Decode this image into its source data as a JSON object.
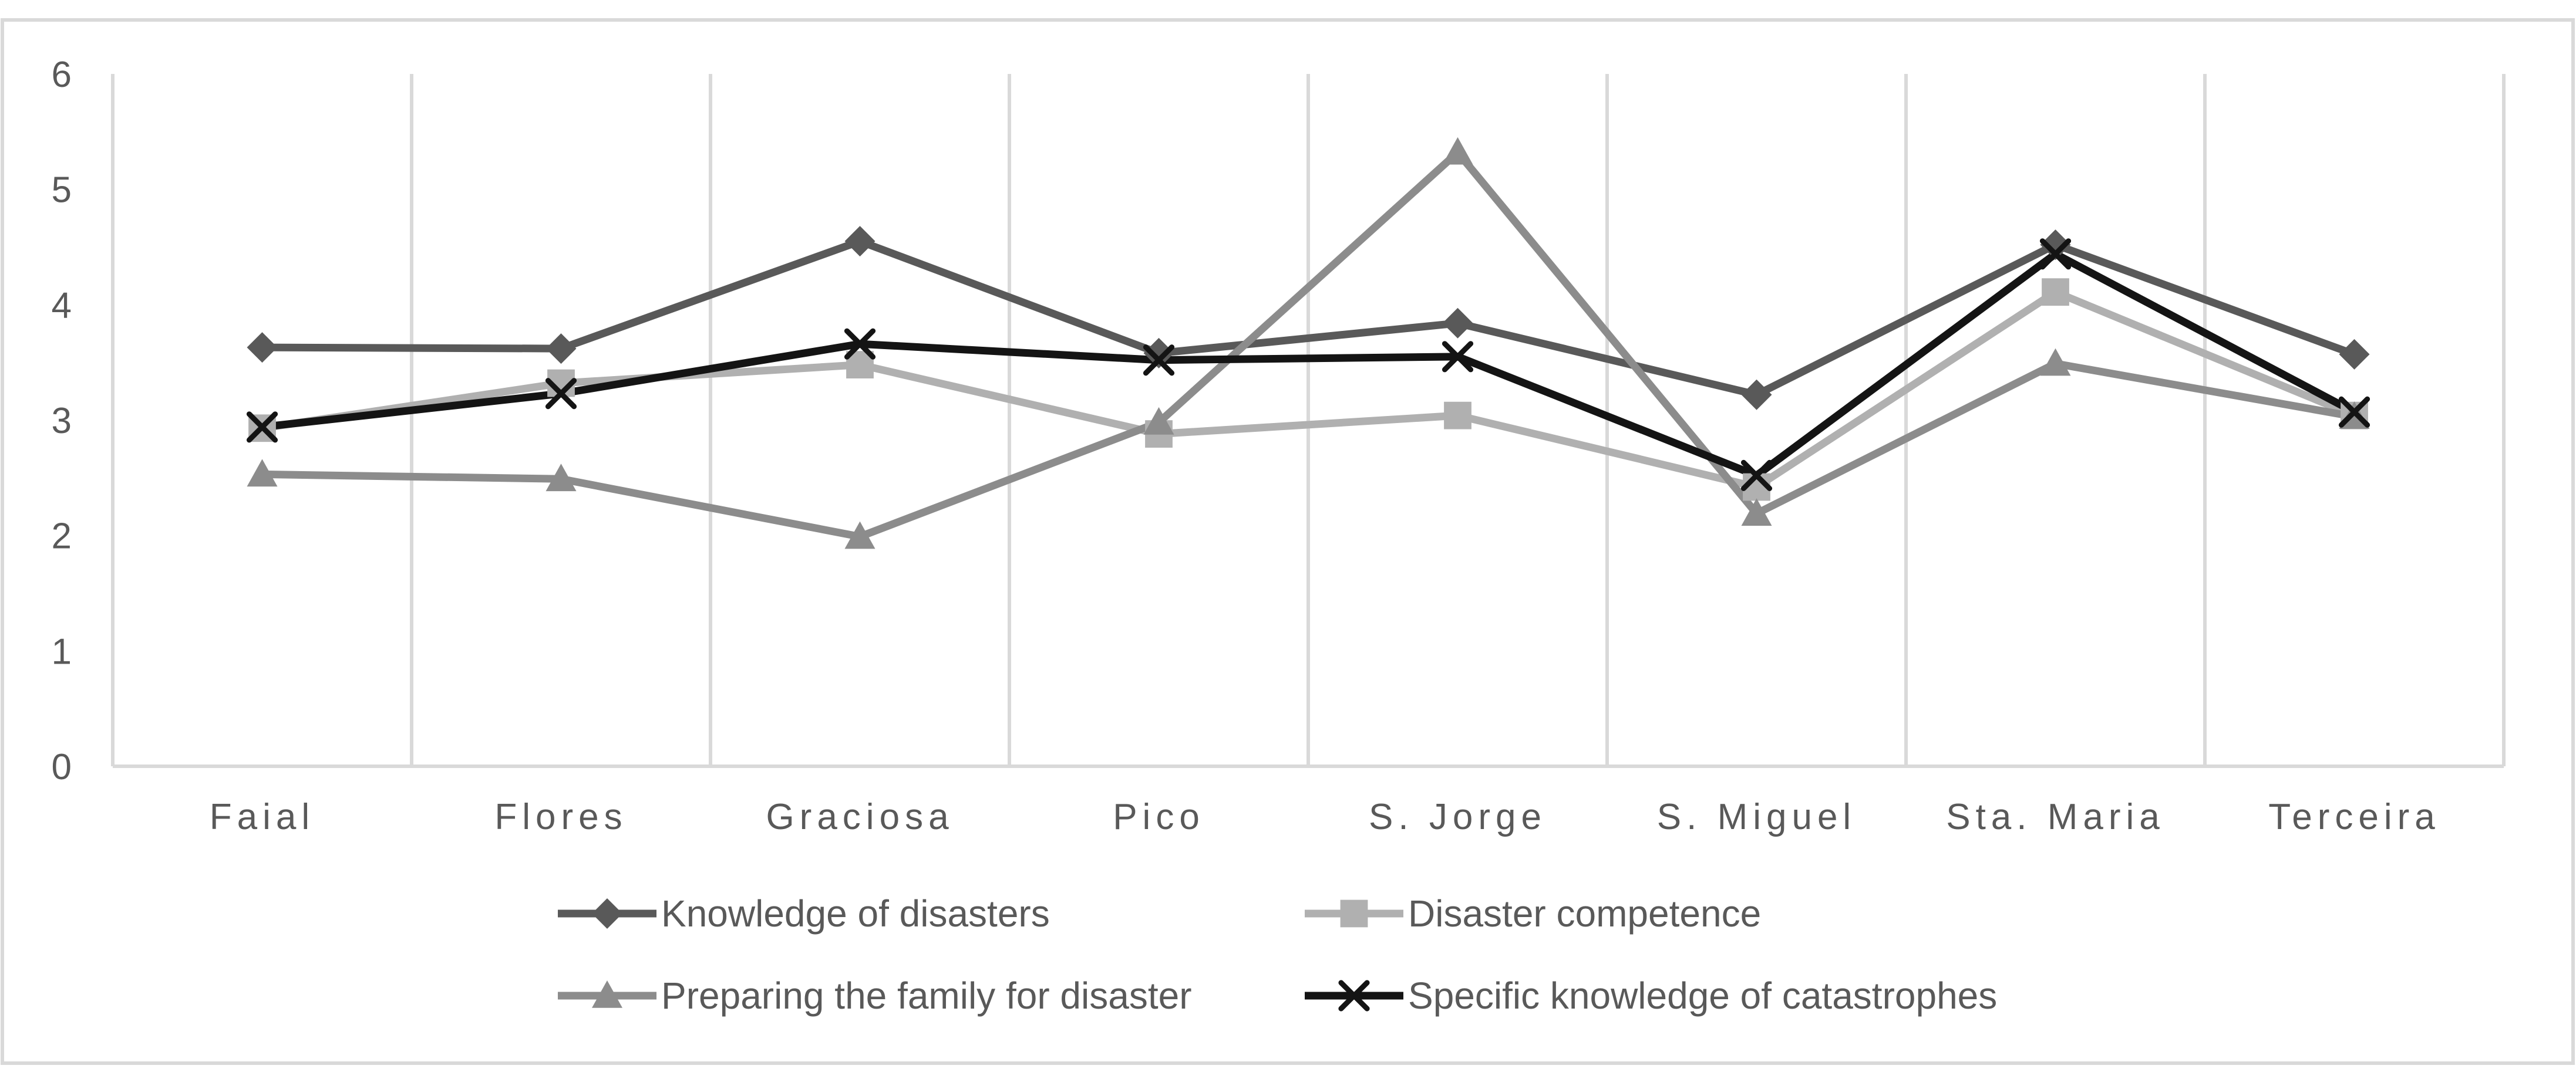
{
  "chart_data": {
    "type": "line",
    "title": "",
    "xlabel": "",
    "ylabel": "",
    "ylim": [
      0,
      6
    ],
    "yticks": [
      "0",
      "1",
      "2",
      "3",
      "4",
      "5",
      "6"
    ],
    "categories": [
      "Faial",
      "Flores",
      "Graciosa",
      "Pico",
      "S. Jorge",
      "S. Miguel",
      "Sta. Maria",
      "Terceira"
    ],
    "grid": "vertical",
    "legend_position": "bottom",
    "series": [
      {
        "name": "Knowledge of disasters",
        "color": "#595959",
        "marker": "diamond",
        "values": [
          3.63,
          3.62,
          4.55,
          3.58,
          3.84,
          3.22,
          4.52,
          3.57
        ]
      },
      {
        "name": "Disaster competence",
        "color": "#b0b0b0",
        "marker": "square",
        "values": [
          2.93,
          3.32,
          3.48,
          2.88,
          3.04,
          2.42,
          4.11,
          3.04
        ]
      },
      {
        "name": "Preparing the family for disaster",
        "color": "#8c8c8c",
        "marker": "triangle",
        "values": [
          2.53,
          2.49,
          1.99,
          2.98,
          5.32,
          2.19,
          3.49,
          3.03
        ]
      },
      {
        "name": "Specific knowledge of catastrophes",
        "color": "#141414",
        "marker": "x",
        "values": [
          2.94,
          3.23,
          3.66,
          3.52,
          3.55,
          2.52,
          4.44,
          3.07
        ]
      }
    ]
  }
}
